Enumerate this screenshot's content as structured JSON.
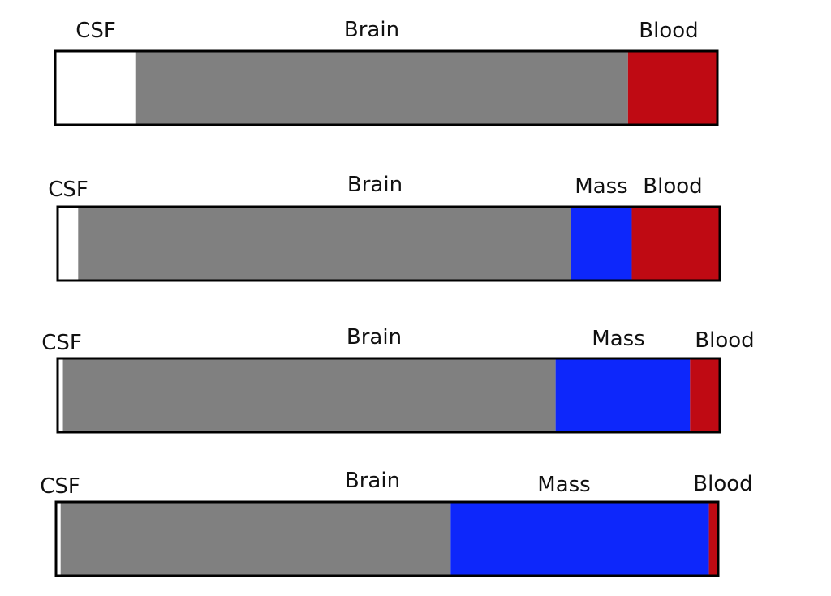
{
  "colors": {
    "CSF": "#ffffff",
    "Brain": "#808080",
    "Mass": "#0d27fb",
    "Blood": "#bf0a13",
    "outline": "#000000"
  },
  "bars": [
    {
      "segments": [
        {
          "name": "CSF",
          "label": "CSF",
          "fraction": 0.121
        },
        {
          "name": "Brain",
          "label": "Brain",
          "fraction": 0.744
        },
        {
          "name": "Blood",
          "label": "Blood",
          "fraction": 0.135
        }
      ]
    },
    {
      "segments": [
        {
          "name": "CSF",
          "label": "CSF",
          "fraction": 0.031
        },
        {
          "name": "Brain",
          "label": "Brain",
          "fraction": 0.744
        },
        {
          "name": "Mass",
          "label": "Mass",
          "fraction": 0.092
        },
        {
          "name": "Blood",
          "label": "Blood",
          "fraction": 0.133
        }
      ]
    },
    {
      "segments": [
        {
          "name": "CSF",
          "label": "CSF",
          "fraction": 0.008
        },
        {
          "name": "Brain",
          "label": "Brain",
          "fraction": 0.744
        },
        {
          "name": "Mass",
          "label": "Mass",
          "fraction": 0.203
        },
        {
          "name": "Blood",
          "label": "Blood",
          "fraction": 0.045
        }
      ]
    },
    {
      "segments": [
        {
          "name": "CSF",
          "label": "CSF",
          "fraction": 0.007
        },
        {
          "name": "Brain",
          "label": "Brain",
          "fraction": 0.589
        },
        {
          "name": "Mass",
          "label": "Mass",
          "fraction": 0.39
        },
        {
          "name": "Blood",
          "label": "Blood",
          "fraction": 0.014
        }
      ]
    }
  ]
}
